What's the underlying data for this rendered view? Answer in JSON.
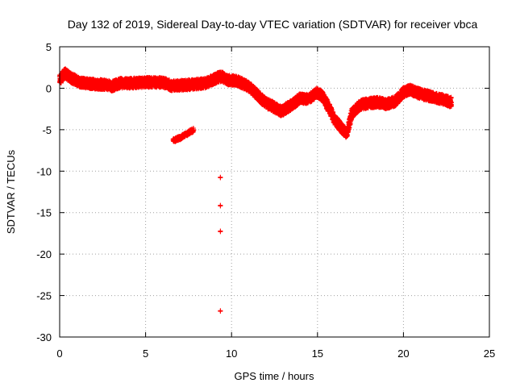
{
  "chart_data": {
    "type": "scatter",
    "title": "Day 132 of 2019, Sidereal Day-to-day VTEC variation (SDTVAR) for receiver vbca",
    "xlabel": "GPS time / hours",
    "ylabel": "SDTVAR / TECUs",
    "xlim": [
      0,
      25
    ],
    "ylim": [
      -30,
      5
    ],
    "xticks": [
      0,
      5,
      10,
      15,
      20,
      25
    ],
    "yticks": [
      5,
      0,
      -5,
      -10,
      -15,
      -20,
      -25,
      -30
    ],
    "grid": true,
    "marker": "plus",
    "series_color": "#ff0000",
    "band_center": [
      [
        0.0,
        1.0
      ],
      [
        0.3,
        1.8
      ],
      [
        0.7,
        1.2
      ],
      [
        1.2,
        0.7
      ],
      [
        2.0,
        0.5
      ],
      [
        2.8,
        0.4
      ],
      [
        3.0,
        0.2
      ],
      [
        3.5,
        0.6
      ],
      [
        4.0,
        0.6
      ],
      [
        5.0,
        0.7
      ],
      [
        6.0,
        0.7
      ],
      [
        6.5,
        0.3
      ],
      [
        7.5,
        0.4
      ],
      [
        8.5,
        0.6
      ],
      [
        9.2,
        1.3
      ],
      [
        9.45,
        1.4
      ],
      [
        9.7,
        1.0
      ],
      [
        10.3,
        0.9
      ],
      [
        11.0,
        0.2
      ],
      [
        11.5,
        -0.8
      ],
      [
        12.0,
        -1.8
      ],
      [
        12.5,
        -2.3
      ],
      [
        12.9,
        -2.8
      ],
      [
        13.5,
        -2.0
      ],
      [
        14.0,
        -1.2
      ],
      [
        14.5,
        -1.3
      ],
      [
        15.0,
        -0.5
      ],
      [
        15.3,
        -1.0
      ],
      [
        15.7,
        -2.5
      ],
      [
        16.0,
        -3.8
      ],
      [
        16.4,
        -4.8
      ],
      [
        16.7,
        -5.5
      ],
      [
        17.0,
        -3.0
      ],
      [
        17.5,
        -2.0
      ],
      [
        18.0,
        -1.8
      ],
      [
        18.5,
        -1.7
      ],
      [
        19.0,
        -1.9
      ],
      [
        19.5,
        -1.6
      ],
      [
        20.0,
        -0.5
      ],
      [
        20.4,
        -0.2
      ],
      [
        21.0,
        -0.7
      ],
      [
        22.0,
        -1.2
      ],
      [
        22.8,
        -1.7
      ]
    ],
    "band_halfwidth": 0.6,
    "cluster": [
      [
        6.6,
        -6.3
      ],
      [
        7.0,
        -6.0
      ],
      [
        7.4,
        -5.5
      ],
      [
        7.8,
        -5.0
      ]
    ],
    "outliers": [
      {
        "x": 9.35,
        "y": -10.8
      },
      {
        "x": 9.35,
        "y": -14.2
      },
      {
        "x": 9.35,
        "y": -17.3
      },
      {
        "x": 9.35,
        "y": -26.9
      }
    ]
  }
}
